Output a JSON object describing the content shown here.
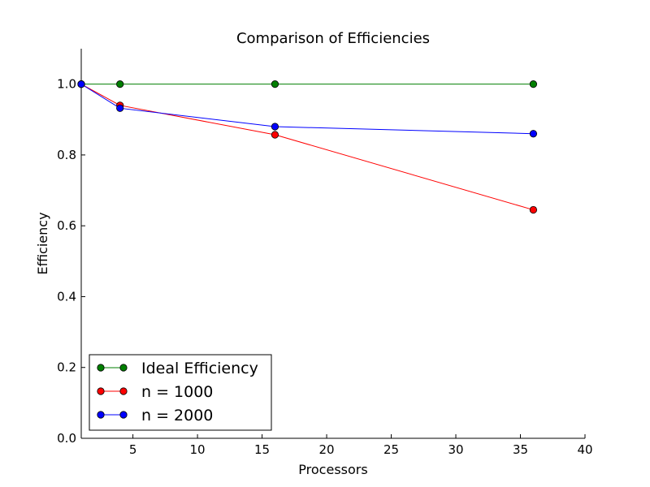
{
  "chart_data": {
    "type": "line",
    "title": "Comparison of Efficiencies",
    "xlabel": "Processors",
    "ylabel": "Efficiency",
    "xlim": [
      1,
      40
    ],
    "ylim": [
      0.0,
      1.1
    ],
    "xticks": [
      5,
      10,
      15,
      20,
      25,
      30,
      35,
      40
    ],
    "yticks": [
      0.0,
      0.2,
      0.4,
      0.6,
      0.8,
      1.0
    ],
    "xtick_labels": [
      "5",
      "10",
      "15",
      "20",
      "25",
      "30",
      "35",
      "40"
    ],
    "ytick_labels": [
      "0.0",
      "0.2",
      "0.4",
      "0.6",
      "0.8",
      "1.0"
    ],
    "grid": false,
    "legend_position": "bottom-left",
    "series": [
      {
        "name": "Ideal Efficiency",
        "color": "#007f00",
        "marker": "circle",
        "x": [
          1,
          4,
          16,
          36
        ],
        "y": [
          1.0,
          1.0,
          1.0,
          1.0
        ]
      },
      {
        "name": "n = 1000",
        "color": "#ff0000",
        "marker": "circle",
        "x": [
          1,
          4,
          16,
          36
        ],
        "y": [
          1.0,
          0.94,
          0.857,
          0.645
        ]
      },
      {
        "name": "n = 2000",
        "color": "#0000ff",
        "marker": "circle",
        "x": [
          1,
          4,
          16,
          36
        ],
        "y": [
          1.0,
          0.932,
          0.88,
          0.86
        ]
      }
    ]
  }
}
